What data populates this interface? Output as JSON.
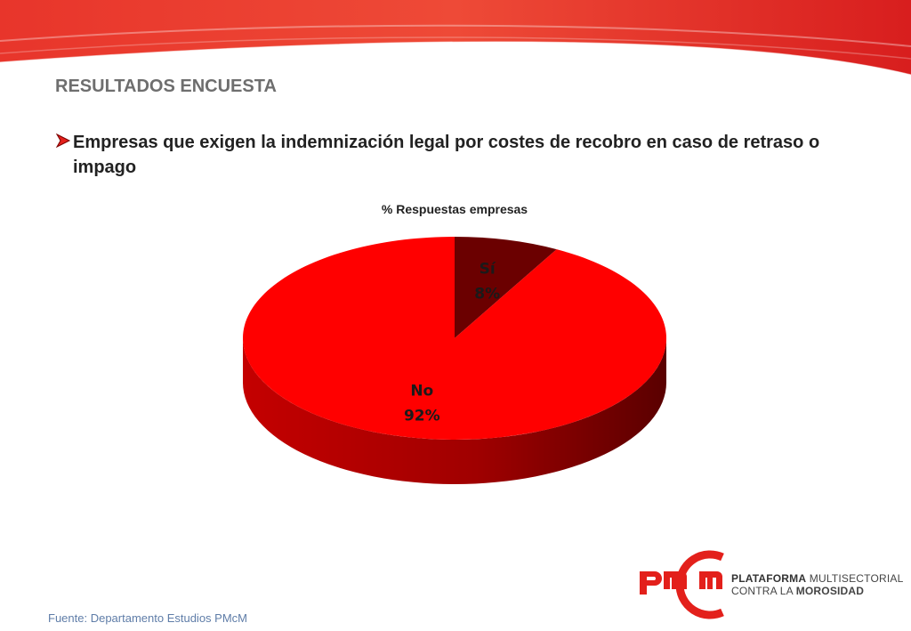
{
  "header": {
    "section_title": "RESULTADOS ENCUESTA",
    "bullet_text": "Empresas que exigen la indemnización legal por costes de recobro en caso de retraso o impago"
  },
  "chart_data": {
    "type": "pie",
    "title": "% Respuestas empresas",
    "three_d": true,
    "slices": [
      {
        "label": "Sí",
        "value": 8,
        "display": "8%",
        "color": "#6b0000"
      },
      {
        "label": "No",
        "value": 92,
        "display": "92%",
        "color": "#ff0000"
      }
    ]
  },
  "logo": {
    "mark": "pmcm",
    "line1_bold": "PLATAFORMA",
    "line1_rest": " MULTISECTORIAL",
    "line2_rest": "CONTRA LA ",
    "line2_bold": "MOROSIDAD"
  },
  "footer": {
    "source": "Fuente: Departamento Estudios PMcM"
  },
  "colors": {
    "brand_red": "#e3201b",
    "title_gray": "#6e6e6e",
    "source_blue": "#5f7da8"
  }
}
